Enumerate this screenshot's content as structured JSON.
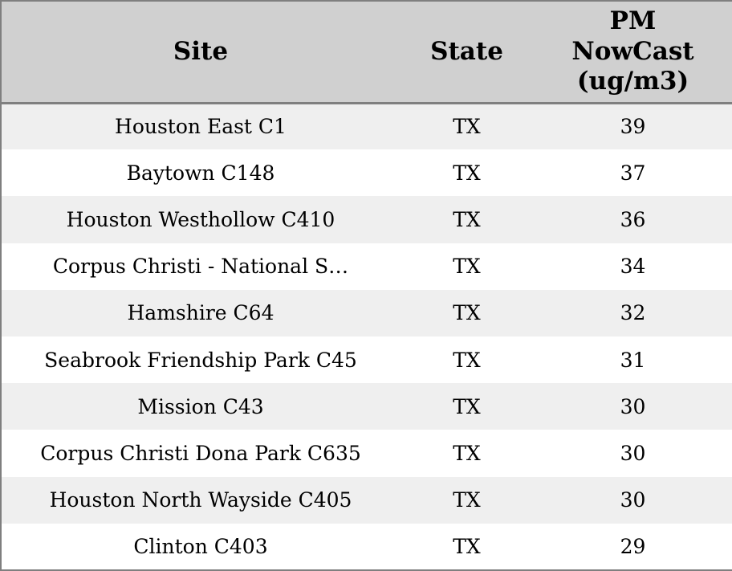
{
  "colors": {
    "header_bg": "#d0d0d0",
    "row_odd_bg": "#efefef",
    "row_even_bg": "#ffffff",
    "border": "#7f7f7f",
    "text": "#000000"
  },
  "table": {
    "columns": [
      {
        "key": "site",
        "label": "Site"
      },
      {
        "key": "state",
        "label": "State"
      },
      {
        "key": "pm",
        "label": "PM\nNowCast\n(ug/m3)"
      }
    ],
    "rows": [
      {
        "site": "Houston East C1",
        "state": "TX",
        "pm": "39"
      },
      {
        "site": "Baytown C148",
        "state": "TX",
        "pm": "37"
      },
      {
        "site": "Houston Westhollow C410",
        "state": "TX",
        "pm": "36"
      },
      {
        "site": "Corpus Christi - National S…",
        "state": "TX",
        "pm": "34"
      },
      {
        "site": "Hamshire C64",
        "state": "TX",
        "pm": "32"
      },
      {
        "site": "Seabrook Friendship Park C45",
        "state": "TX",
        "pm": "31"
      },
      {
        "site": "Mission C43",
        "state": "TX",
        "pm": "30"
      },
      {
        "site": "Corpus Christi Dona Park C635",
        "state": "TX",
        "pm": "30"
      },
      {
        "site": "Houston North Wayside C405",
        "state": "TX",
        "pm": "30"
      },
      {
        "site": "Clinton C403",
        "state": "TX",
        "pm": "29"
      }
    ]
  },
  "chart_data": {
    "type": "table",
    "title": "",
    "columns": [
      "Site",
      "State",
      "PM NowCast (ug/m3)"
    ],
    "rows": [
      [
        "Houston East C1",
        "TX",
        39
      ],
      [
        "Baytown C148",
        "TX",
        37
      ],
      [
        "Houston Westhollow C410",
        "TX",
        36
      ],
      [
        "Corpus Christi - National S…",
        "TX",
        34
      ],
      [
        "Hamshire C64",
        "TX",
        32
      ],
      [
        "Seabrook Friendship Park C45",
        "TX",
        31
      ],
      [
        "Mission C43",
        "TX",
        30
      ],
      [
        "Corpus Christi Dona Park C635",
        "TX",
        30
      ],
      [
        "Houston North Wayside C405",
        "TX",
        30
      ],
      [
        "Clinton C403",
        "TX",
        29
      ]
    ],
    "layout": {
      "zebra_striping": true,
      "header_position": "top",
      "cell_alignment": "center"
    }
  }
}
